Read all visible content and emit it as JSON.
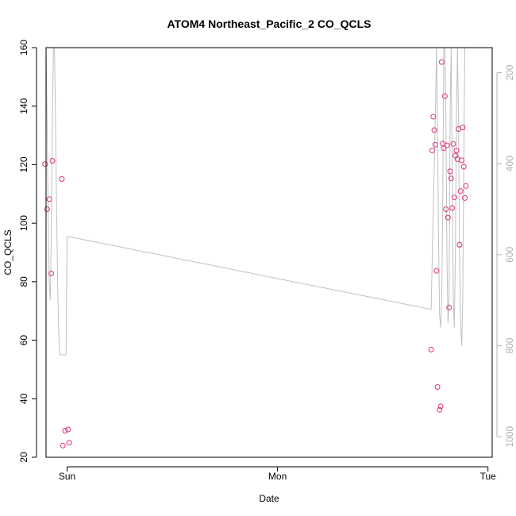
{
  "chart_data": {
    "type": "scatter",
    "title": "ATOM4 Northeast_Pacific_2 CO_QCLS",
    "xlabel": "Date",
    "ylabel": "CO_QCLS",
    "x_ticks": [
      "Sun",
      "Mon",
      "Tue"
    ],
    "xlim": [
      -0.1,
      2.02
    ],
    "ylim": [
      20,
      160
    ],
    "y_ticks": [
      20,
      40,
      60,
      80,
      100,
      120,
      140,
      160
    ],
    "y2_ticks": [
      200,
      400,
      600,
      800,
      1000
    ],
    "y2lim": [
      1045,
      145
    ],
    "y2_reversed": true,
    "grid": false,
    "colors": {
      "points": "#e0307e",
      "line": "#c0c0c0",
      "right_axis": "#b0b0b0"
    },
    "series": [
      {
        "type": "scatter",
        "x": [
          -0.105,
          -0.095,
          -0.085,
          -0.075,
          -0.07,
          -0.025,
          -0.02,
          -0.01,
          0.005,
          0.01,
          1.73,
          1.735,
          1.74,
          1.745,
          1.75,
          1.755,
          1.76,
          1.77,
          1.775,
          1.78,
          1.785,
          1.79,
          1.795,
          1.8,
          1.805,
          1.81,
          1.815,
          1.82,
          1.825,
          1.83,
          1.835,
          1.84,
          1.845,
          1.85,
          1.855,
          1.86,
          1.865,
          1.87,
          1.875,
          1.88,
          1.885,
          1.89,
          1.895
        ],
        "y": [
          120.2,
          104.8,
          108.2,
          82.8,
          121.3,
          115.1,
          24.0,
          29.1,
          29.5,
          25.0,
          56.8,
          124.8,
          136.4,
          131.8,
          126.8,
          83.7,
          44.0,
          36.2,
          37.4,
          155.1,
          127.2,
          125.6,
          143.4,
          104.8,
          126.6,
          101.9,
          71.2,
          117.7,
          115.3,
          105.2,
          127.1,
          108.8,
          123.1,
          124.8,
          121.9,
          132.2,
          92.6,
          111.0,
          121.5,
          132.7,
          119.3,
          108.6,
          112.7
        ]
      },
      {
        "type": "line",
        "axis": "right",
        "x": [
          -0.1,
          -0.095,
          -0.09,
          -0.085,
          -0.08,
          -0.075,
          -0.07,
          -0.065,
          -0.06,
          -0.055,
          -0.05,
          -0.045,
          -0.04,
          -0.035,
          -0.03,
          -0.025,
          -0.02,
          -0.015,
          -0.01,
          -0.005,
          0.0,
          0.005,
          1.73,
          1.74,
          1.75,
          1.755,
          1.76,
          1.765,
          1.77,
          1.775,
          1.78,
          1.785,
          1.79,
          1.795,
          1.8,
          1.805,
          1.81,
          1.815,
          1.82,
          1.825,
          1.83,
          1.835,
          1.84,
          1.845,
          1.85,
          1.855,
          1.86,
          1.865,
          1.87,
          1.875,
          1.88,
          1.885,
          1.89,
          1.9
        ],
        "y": [
          145,
          300,
          520,
          660,
          700,
          560,
          300,
          145,
          145,
          300,
          500,
          660,
          770,
          820,
          820,
          820,
          820,
          820,
          820,
          820,
          560,
          560,
          720,
          500,
          300,
          145,
          300,
          560,
          730,
          760,
          700,
          500,
          145,
          145,
          300,
          600,
          750,
          700,
          300,
          145,
          400,
          700,
          760,
          600,
          300,
          145,
          300,
          600,
          750,
          800,
          700,
          400,
          145,
          145
        ]
      }
    ]
  }
}
